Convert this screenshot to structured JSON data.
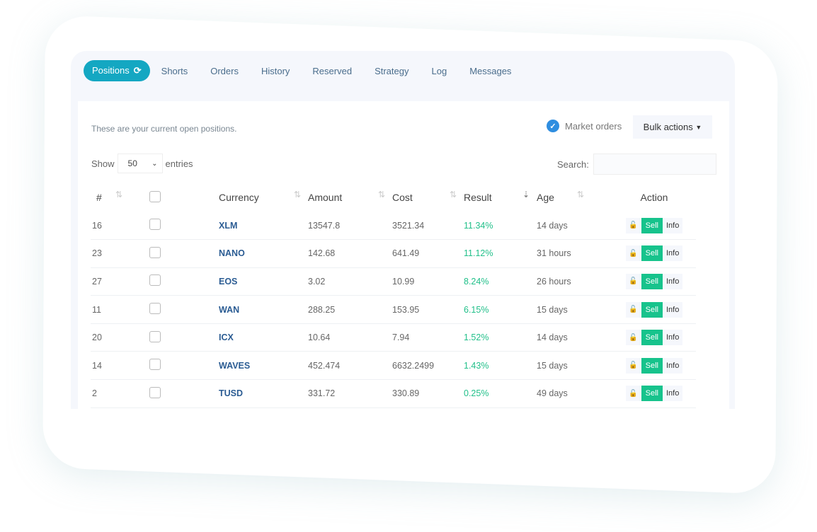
{
  "tabs": [
    "Positions",
    "Shorts",
    "Orders",
    "History",
    "Reserved",
    "Strategy",
    "Log",
    "Messages"
  ],
  "intro": "These are your current open positions.",
  "market_orders": "Market orders",
  "bulk_actions": "Bulk actions",
  "show_label": "Show",
  "entries_value": "50",
  "entries_label": "entries",
  "search_label": "Search:",
  "search_value": "",
  "columns": [
    "#",
    "",
    "Currency",
    "Amount",
    "Cost",
    "Result",
    "Age",
    "Action"
  ],
  "actions": {
    "sell": "Sell",
    "info": "Info"
  },
  "rows": [
    {
      "id": "16",
      "currency": "XLM",
      "amount": "13547.8",
      "cost": "3521.34",
      "result": "11.34%",
      "age": "14 days"
    },
    {
      "id": "23",
      "currency": "NANO",
      "amount": "142.68",
      "cost": "641.49",
      "result": "11.12%",
      "age": "31 hours"
    },
    {
      "id": "27",
      "currency": "EOS",
      "amount": "3.02",
      "cost": "10.99",
      "result": "8.24%",
      "age": "26 hours"
    },
    {
      "id": "11",
      "currency": "WAN",
      "amount": "288.25",
      "cost": "153.95",
      "result": "6.15%",
      "age": "15 days"
    },
    {
      "id": "20",
      "currency": "ICX",
      "amount": "10.64",
      "cost": "7.94",
      "result": "1.52%",
      "age": "14 days"
    },
    {
      "id": "14",
      "currency": "WAVES",
      "amount": "452.474",
      "cost": "6632.2499",
      "result": "1.43%",
      "age": "15 days"
    },
    {
      "id": "2",
      "currency": "TUSD",
      "amount": "331.72",
      "cost": "330.89",
      "result": "0.25%",
      "age": "49 days"
    }
  ]
}
